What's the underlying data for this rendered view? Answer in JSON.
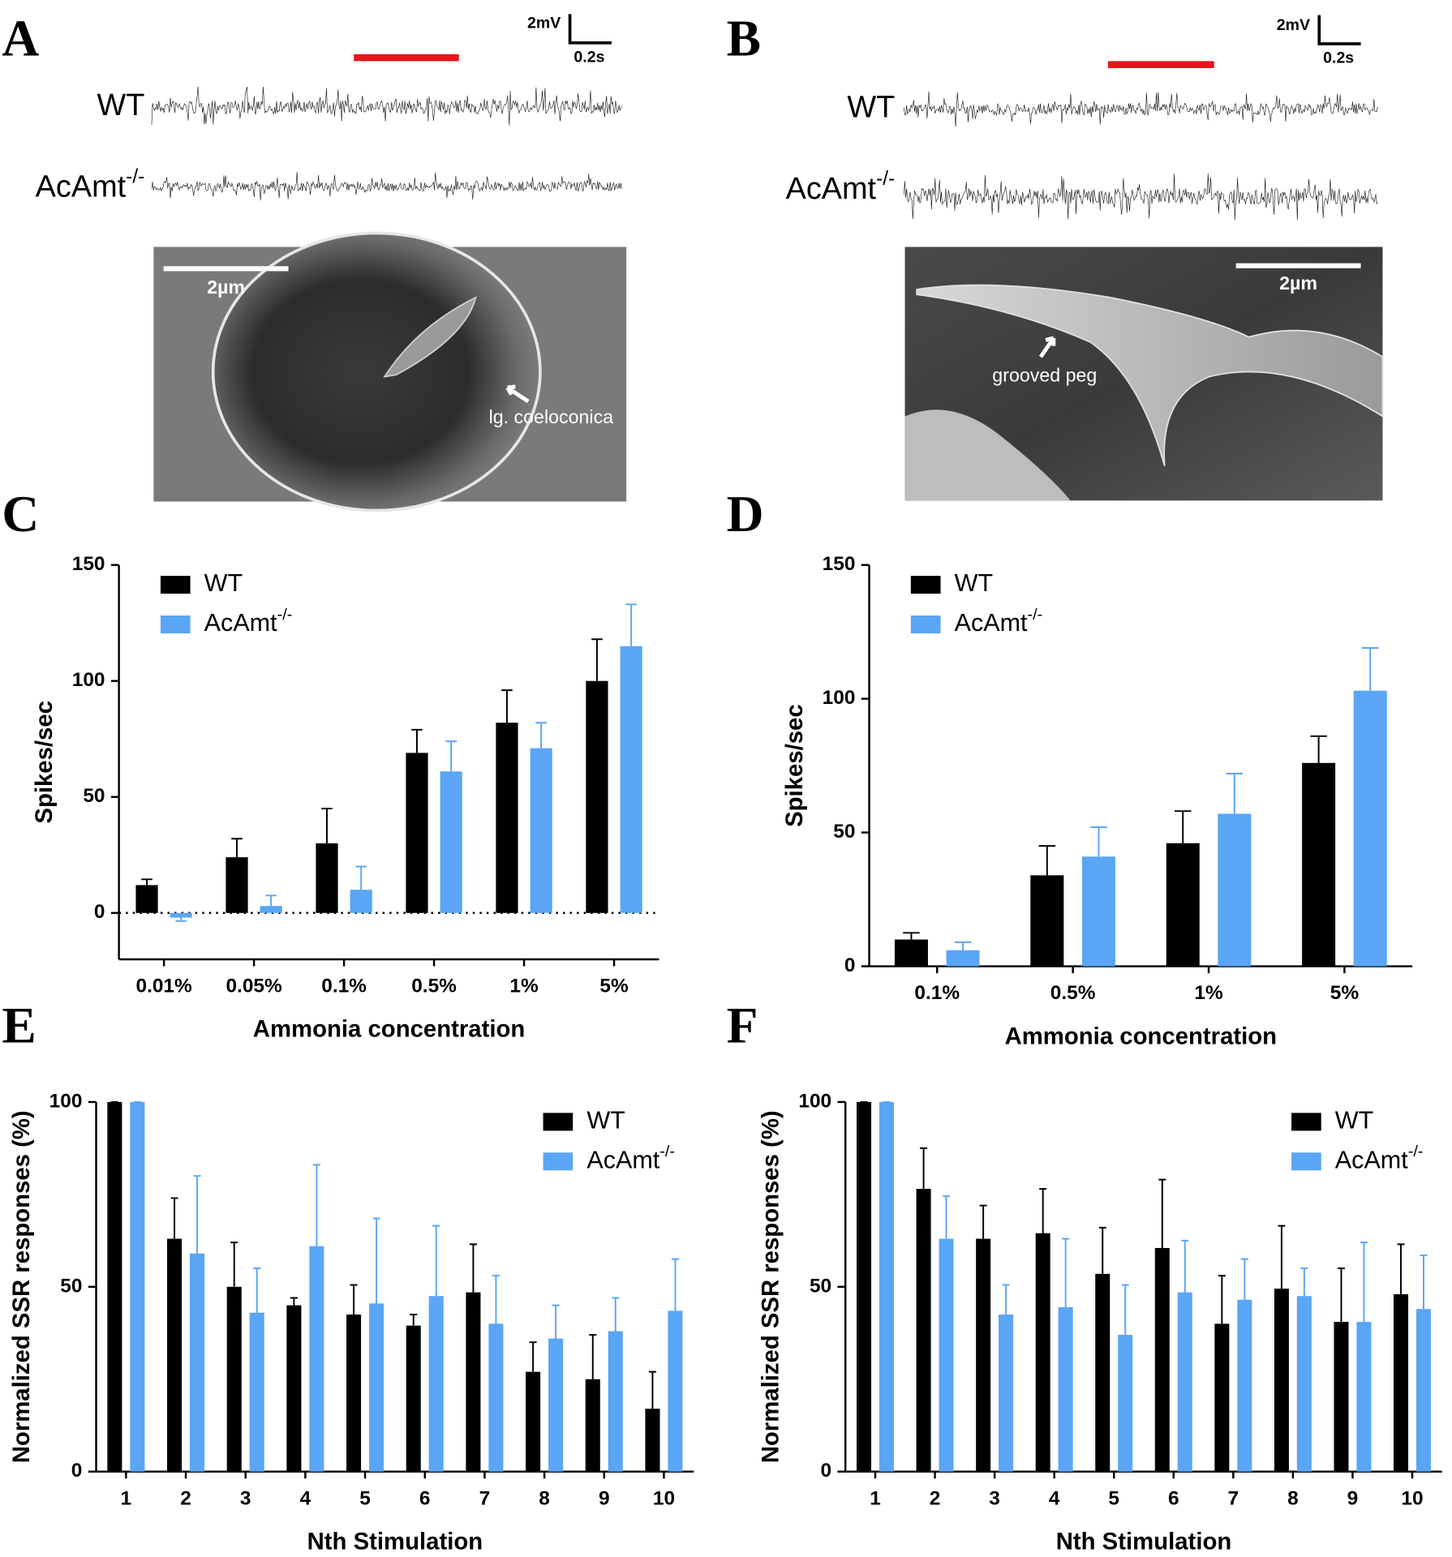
{
  "figure": {
    "panels": [
      "A",
      "B",
      "C",
      "D",
      "E",
      "F"
    ],
    "recordings": [
      {
        "labels": [
          "WT",
          "AcAmt-/-"
        ],
        "scale_y": "2mV",
        "scale_x": "0.2s",
        "scale_bar": "2µm",
        "annotation": "lg. coeloconica"
      },
      {
        "labels": [
          "WT",
          "AcAmt-/-"
        ],
        "scale_y": "2mV",
        "scale_x": "0.2s",
        "scale_bar": "2µm",
        "annotation": "grooved peg"
      }
    ]
  },
  "chart_data": [
    {
      "type": "bar",
      "y_label": "Spikes/sec",
      "x_label": "Ammonia concentration",
      "categories": [
        "0.01%",
        "0.05%",
        "0.1%",
        "0.5%",
        "1%",
        "5%"
      ],
      "series": [
        {
          "name": "WT",
          "color": "#000000",
          "values": [
            12,
            24,
            30,
            69,
            82,
            100
          ],
          "errors": [
            2.5,
            8,
            15,
            10,
            14,
            18
          ]
        },
        {
          "name": "AcAmt-/-",
          "color": "#5aa5f5",
          "values": [
            -2,
            3,
            10,
            61,
            71,
            115
          ],
          "errors": [
            1.5,
            4.5,
            10,
            13,
            11,
            18
          ]
        }
      ],
      "ylim": [
        -20,
        150
      ],
      "yticks": [
        0,
        50,
        100,
        150
      ],
      "zero_line": true,
      "legend": "upper left"
    },
    {
      "type": "bar",
      "y_label": "Spikes/sec",
      "x_label": "Ammonia concentration",
      "categories": [
        "0.1%",
        "0.5%",
        "1%",
        "5%"
      ],
      "series": [
        {
          "name": "WT",
          "color": "#000000",
          "values": [
            10,
            34,
            46,
            76
          ],
          "errors": [
            2.5,
            11,
            12,
            10
          ]
        },
        {
          "name": "AcAmt-/-",
          "color": "#5aa5f5",
          "values": [
            6,
            41,
            57,
            103
          ],
          "errors": [
            3,
            11,
            15,
            16
          ]
        }
      ],
      "ylim": [
        0,
        150
      ],
      "yticks": [
        0,
        50,
        100,
        150
      ],
      "zero_line": false,
      "legend": "upper left"
    },
    {
      "type": "bar",
      "y_label": "Normalized SSR responses (%)",
      "x_label": "Nth Stimulation",
      "categories": [
        "1",
        "2",
        "3",
        "4",
        "5",
        "6",
        "7",
        "8",
        "9",
        "10"
      ],
      "series": [
        {
          "name": "WT",
          "color": "#000000",
          "values": [
            100,
            63,
            50,
            45,
            42.5,
            39.5,
            48.5,
            27,
            25,
            17
          ],
          "errors": [
            0,
            11,
            12,
            2,
            8,
            3,
            13,
            8,
            12,
            10
          ]
        },
        {
          "name": "AcAmt-/-",
          "color": "#5aa5f5",
          "values": [
            100,
            59,
            43,
            61,
            45.5,
            47.5,
            40,
            36,
            38,
            43.5
          ],
          "errors": [
            0,
            21,
            12,
            22,
            23,
            19,
            13,
            9,
            9,
            14
          ]
        }
      ],
      "ylim": [
        0,
        100
      ],
      "yticks": [
        0,
        50,
        100
      ],
      "zero_line": false,
      "legend": "upper right"
    },
    {
      "type": "bar",
      "y_label": "Normalized SSR responses (%)",
      "x_label": "Nth Stimulation",
      "categories": [
        "1",
        "2",
        "3",
        "4",
        "5",
        "6",
        "7",
        "8",
        "9",
        "10"
      ],
      "series": [
        {
          "name": "WT",
          "color": "#000000",
          "values": [
            100,
            76.5,
            63,
            64.5,
            53.5,
            60.5,
            40,
            49.5,
            40.5,
            48
          ],
          "errors": [
            0,
            11,
            9,
            12,
            12.5,
            18.5,
            13,
            17,
            14.5,
            13.5
          ]
        },
        {
          "name": "AcAmt-/-",
          "color": "#5aa5f5",
          "values": [
            100,
            63,
            42.5,
            44.5,
            37,
            48.5,
            46.5,
            47.5,
            40.5,
            44
          ],
          "errors": [
            0,
            11.5,
            8,
            18.5,
            13.5,
            14,
            11,
            7.5,
            21.5,
            14.5
          ]
        }
      ],
      "ylim": [
        0,
        100
      ],
      "yticks": [
        0,
        50,
        100
      ],
      "zero_line": false,
      "legend": "upper right"
    }
  ]
}
